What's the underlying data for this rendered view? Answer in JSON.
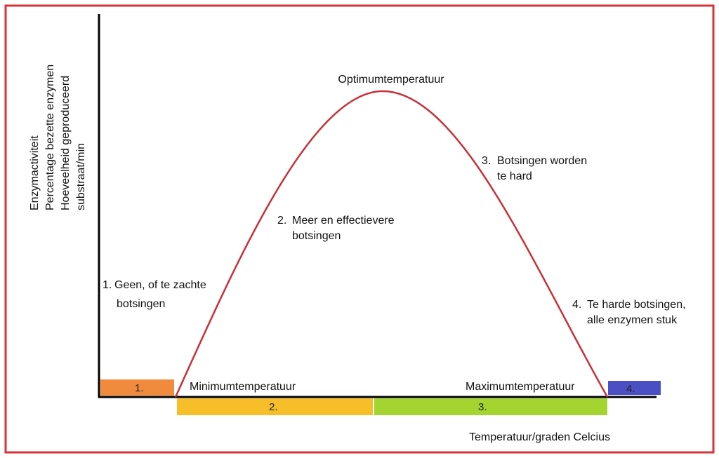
{
  "y_axis_label": {
    "lines": [
      "Enzymactiviteit",
      "Percentage bezette enzymen",
      "Hoeveelheid geproduceerd",
      "substraat/min"
    ]
  },
  "x_axis_label": "Temperatuur/graden Celcius",
  "peak_label": "Optimumtemperatuur",
  "min_label": "Minimumtemperatuur",
  "max_label": "Maximumtemperatuur",
  "annotations": [
    {
      "number": "1.",
      "line1": "Geen, of te zachte",
      "line2": "botsingen"
    },
    {
      "number": "2.",
      "line1": "Meer en effectievere",
      "line2": "botsingen"
    },
    {
      "number": "3.",
      "line1": "Botsingen worden",
      "line2": "te hard"
    },
    {
      "number": "4.",
      "line1": "Te harde botsingen,",
      "line2": "alle enzymen stuk"
    }
  ],
  "zones": [
    {
      "label": "1.",
      "color": "#f08a3c"
    },
    {
      "label": "2.",
      "color": "#f6bf2a"
    },
    {
      "label": "3.",
      "color": "#a3d42f"
    },
    {
      "label": "4.",
      "color": "#4b4fc4"
    }
  ],
  "colors": {
    "frame": "#d8323a",
    "curve": "#c8303a",
    "axis": "#000000"
  }
}
